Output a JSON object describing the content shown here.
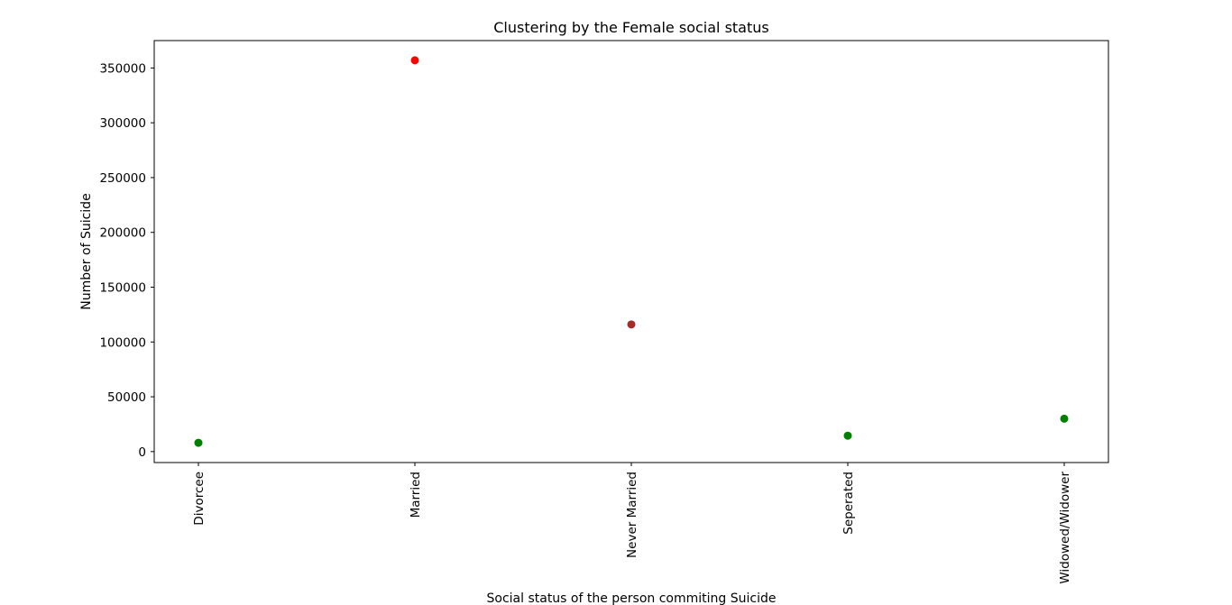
{
  "chart_data": {
    "type": "scatter",
    "title": "Clustering by the Female social status",
    "xlabel": "Social status of the person commiting Suicide",
    "ylabel": "Number of Suicide",
    "categories": [
      "Divorcee",
      "Married",
      "Never Married",
      "Seperated",
      "Widowed/Widower"
    ],
    "points": [
      {
        "category": "Divorcee",
        "value": 8000,
        "color": "#008000"
      },
      {
        "category": "Married",
        "value": 357000,
        "color": "#ff0000"
      },
      {
        "category": "Never Married",
        "value": 116000,
        "color": "#a52a2a"
      },
      {
        "category": "Seperated",
        "value": 14500,
        "color": "#008000"
      },
      {
        "category": "Widowed/Widower",
        "value": 30000,
        "color": "#008000"
      }
    ],
    "yticks": [
      0,
      50000,
      100000,
      150000,
      200000,
      250000,
      300000,
      350000
    ],
    "ylim": [
      -10000,
      375000
    ],
    "grid": false,
    "legend": "none"
  }
}
